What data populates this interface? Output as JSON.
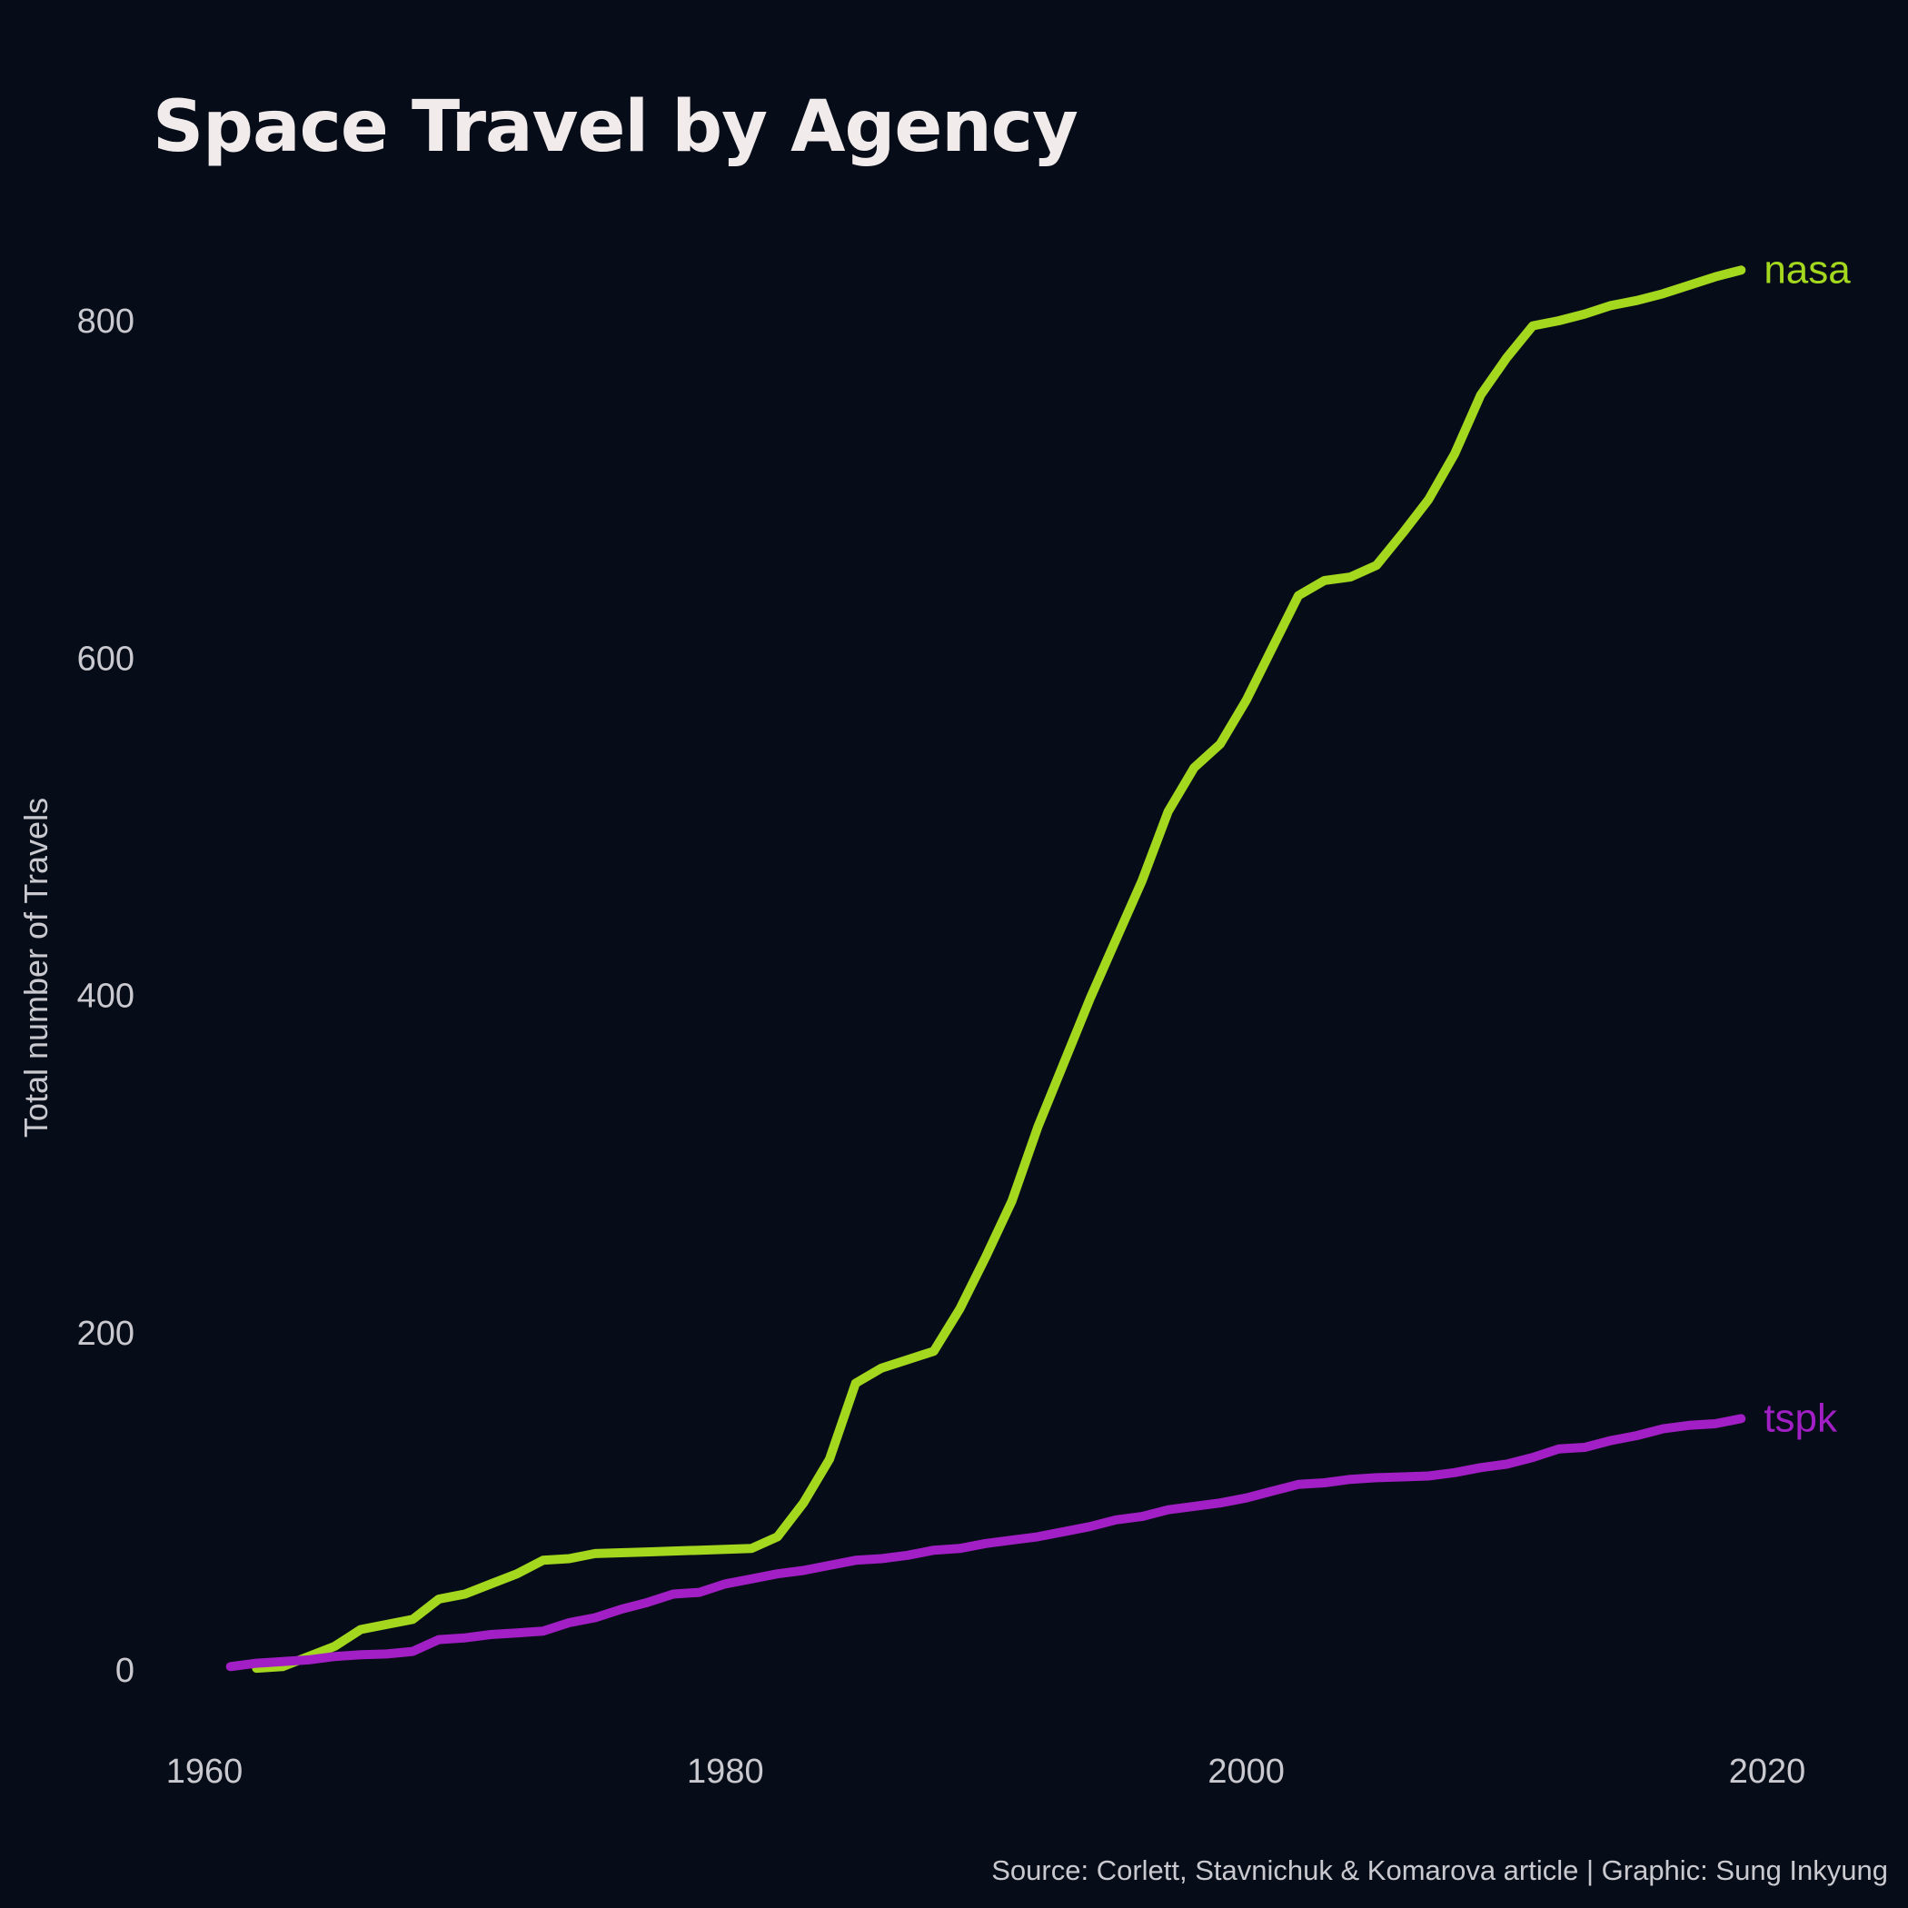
{
  "chart_data": {
    "type": "line",
    "title": "Space Travel by Agency",
    "ylabel": "Total number of Travels",
    "xlabel": "",
    "caption": "Source: Corlett, Stavnichuk & Komarova article | Graphic: Sung Inkyung",
    "xlim": [
      1960,
      2020
    ],
    "ylim": [
      0,
      800
    ],
    "x_ticks": [
      1960,
      1980,
      2000,
      2020
    ],
    "y_ticks": [
      0,
      200,
      400,
      600,
      800
    ],
    "grid": false,
    "legend": "direct labels at line ends",
    "series": [
      {
        "name": "nasa",
        "color": "#a3d81e",
        "x": [
          1962,
          1963,
          1965,
          1966,
          1967,
          1968,
          1969,
          1970,
          1971,
          1972,
          1973,
          1974,
          1975,
          1976,
          1977,
          1978,
          1979,
          1980,
          1981,
          1982,
          1983,
          1984,
          1985,
          1986,
          1987,
          1988,
          1989,
          1990,
          1991,
          1992,
          1993,
          1994,
          1995,
          1996,
          1997,
          1998,
          1999,
          2000,
          2001,
          2002,
          2003,
          2004,
          2005,
          2006,
          2007,
          2008,
          2009,
          2010,
          2011,
          2012,
          2013,
          2014,
          2015,
          2016,
          2017,
          2018,
          2019
        ],
        "values": [
          1,
          2,
          14,
          24,
          27,
          30,
          42,
          45,
          51,
          57,
          65,
          66,
          69,
          69.5,
          70,
          70.5,
          71,
          71.5,
          72,
          79,
          99,
          125,
          170,
          179,
          184,
          189,
          214,
          245,
          278,
          322,
          360,
          398,
          433,
          468,
          509,
          535,
          549,
          575,
          606,
          637,
          646,
          648,
          655,
          674,
          694,
          721,
          756,
          778,
          797,
          800,
          804,
          809,
          812,
          816,
          821,
          826,
          830
        ]
      },
      {
        "name": "tspk",
        "color": "#a11fc4",
        "x": [
          1961,
          1962,
          1963,
          1964,
          1965,
          1966,
          1967,
          1968,
          1969,
          1970,
          1971,
          1972,
          1973,
          1974,
          1975,
          1976,
          1977,
          1978,
          1979,
          1980,
          1981,
          1982,
          1983,
          1984,
          1985,
          1986,
          1987,
          1988,
          1989,
          1990,
          1991,
          1992,
          1993,
          1994,
          1995,
          1996,
          1997,
          1998,
          1999,
          2000,
          2001,
          2002,
          2003,
          2004,
          2005,
          2006,
          2007,
          2008,
          2009,
          2010,
          2011,
          2012,
          2013,
          2014,
          2015,
          2016,
          2017,
          2018,
          2019
        ],
        "values": [
          2,
          4,
          5,
          6,
          8,
          9,
          9.5,
          11,
          18,
          19,
          21,
          22,
          23,
          28,
          31,
          36,
          40,
          45,
          46,
          51,
          54,
          57,
          59,
          62,
          65,
          66,
          68,
          71,
          72,
          75,
          77,
          79,
          82,
          85,
          89,
          91,
          95,
          97,
          99,
          102,
          106,
          110,
          111,
          113,
          114,
          114.5,
          115,
          117,
          120,
          122,
          126,
          131,
          132,
          136,
          139,
          143,
          145,
          146,
          149
        ]
      }
    ]
  }
}
